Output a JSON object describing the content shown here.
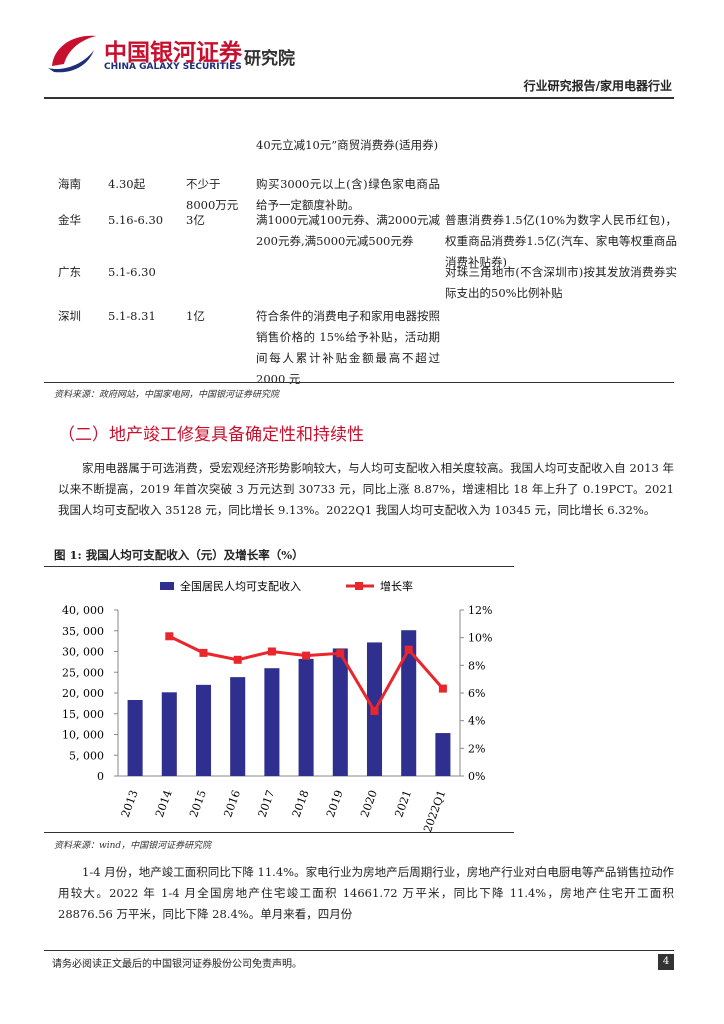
{
  "header": {
    "company": "中国银河证券",
    "company_en": "CHINA GALAXY SECURITIES",
    "institute": "研究院",
    "report_type": "行业研究报告/家用电器行业"
  },
  "table": {
    "rows": [
      {
        "measure": "40元立减10元”商贸消费券(适用券)"
      },
      {
        "region": "海南",
        "period": "4.30起",
        "amount": "不少于8000万元",
        "measure": "购买3000元以上(含)绿色家电商品给予一定额度补助。"
      },
      {
        "region": "金华",
        "period": "5.16-6.30",
        "amount": "3亿",
        "measure": "满1000元减100元券、满2000元减200元券,满5000元减500元券",
        "other": "普惠消费券1.5亿(10%为数字人民币红包)， 权重商品消费券1.5亿(汽车、家电等权重商品消费补贴券)"
      },
      {
        "region": "广东",
        "period": "5.1-6.30",
        "other": "对珠三角地市(不含深圳市)按其发放消费券实际支出的50%比例补贴"
      },
      {
        "region": "深圳",
        "period": "5.1-8.31",
        "amount": "1亿",
        "measure": "符合条件的消费电子和家用电器按照销售价格的 15%给予补贴，活动期间每人累计补贴金额最高不超过 2000 元"
      }
    ],
    "source": "资料来源：政府网站，中国家电网，中国银河证券研究院"
  },
  "section_title": "（二）地产竣工修复具备确定性和持续性",
  "paragraphs": [
    "家用电器属于可选消费，受宏观经济形势影响较大，与人均可支配收入相关度较高。我国人均可支配收入自 2013 年以来不断提高，2019 年首次突破 3 万元达到 30733 元，同比上涨 8.87%，增速相比 18 年上升了 0.19PCT。2021 我国人均可支配收入 35128 元，同比增长 9.13%。2022Q1 我国人均可支配收入为 10345 元，同比增长 6.32%。",
    "1-4 月份，地产竣工面积同比下降 11.4%。家电行业为房地产后周期行业，房地产行业对白电厨电等产品销售拉动作用较大。2022 年 1-4 月全国房地产住宅竣工面积 14661.72 万平米，同比下降 11.4%，房地产住宅开工面积 28876.56 万平米，同比下降 28.4%。单月来看，四月份"
  ],
  "figure": {
    "title": "图 1: 我国人均可支配收入（元）及增长率（%）",
    "source": "资料来源：wind，中国银河证券研究院"
  },
  "chart_data": {
    "type": "bar-line",
    "categories": [
      "2013",
      "2014",
      "2015",
      "2016",
      "2017",
      "2018",
      "2019",
      "2020",
      "2021",
      "2022Q1"
    ],
    "series": [
      {
        "name": "全国居民人均可支配收入",
        "type": "bar",
        "color": "#2e2f8f",
        "values": [
          18311,
          20167,
          21966,
          23821,
          25974,
          28228,
          30733,
          32189,
          35128,
          10345
        ]
      },
      {
        "name": "增长率",
        "type": "line",
        "axis": "y2",
        "color": "#e8262b",
        "values": [
          null,
          10.1,
          8.9,
          8.4,
          9.0,
          8.7,
          8.87,
          4.7,
          9.13,
          6.32
        ]
      }
    ],
    "ylim": [
      0,
      40000
    ],
    "yticks": [
      0,
      {
        "value": 5000,
        "label": "5, 000"
      },
      {
        "value": 10000,
        "label": "10, 000"
      },
      {
        "value": 15000,
        "label": "15, 000"
      },
      {
        "value": 20000,
        "label": "20, 000"
      },
      {
        "value": 25000,
        "label": "25, 000"
      },
      {
        "value": 30000,
        "label": "30, 000"
      },
      {
        "value": 35000,
        "label": "35, 000"
      },
      {
        "value": 40000,
        "label": "40, 000"
      }
    ],
    "y2lim": [
      0,
      12
    ],
    "y2ticks": [
      {
        "value": 0,
        "label": "0%"
      },
      {
        "value": 2,
        "label": "2%"
      },
      {
        "value": 4,
        "label": "4%"
      },
      {
        "value": 6,
        "label": "6%"
      },
      {
        "value": 8,
        "label": "8%"
      },
      {
        "value": 10,
        "label": "10%"
      },
      {
        "value": 12,
        "label": "12%"
      }
    ],
    "grid": false,
    "legend": "top"
  },
  "footer": {
    "disclaimer": "请务必阅读正文最后的中国银河证券股份公司免责声明。",
    "page": "4"
  }
}
